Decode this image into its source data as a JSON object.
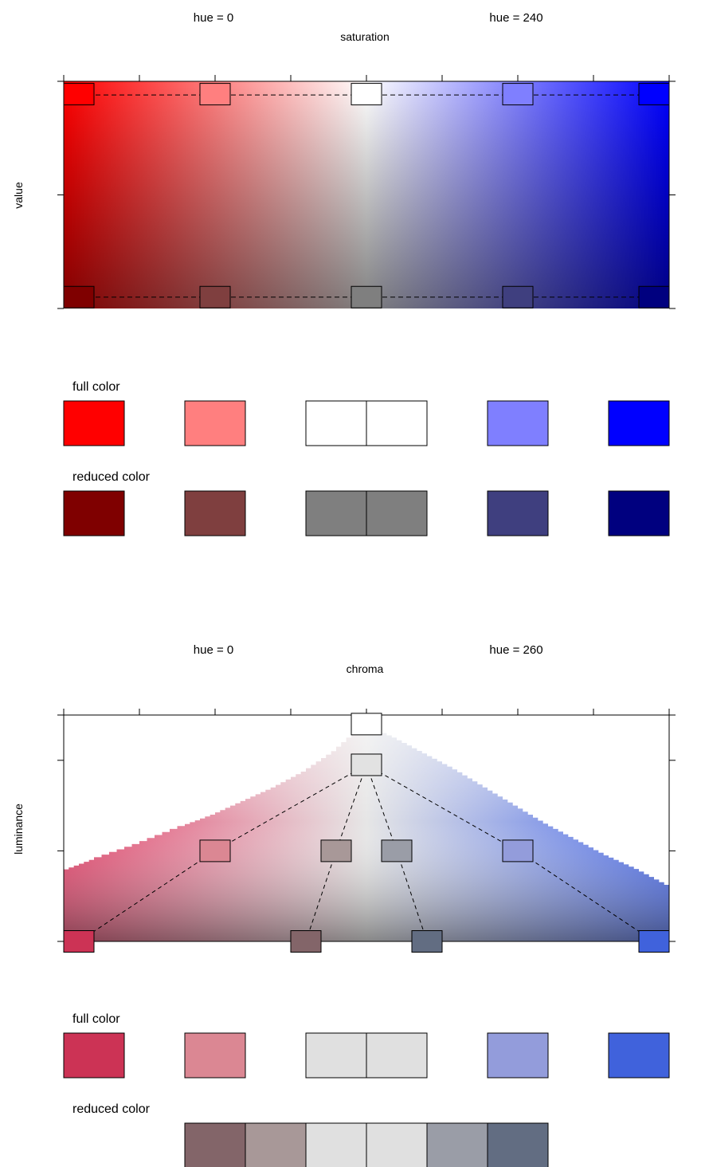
{
  "chart_data": [
    {
      "type": "heatmap",
      "color_space": "HSV",
      "hue_left": 0,
      "hue_right": 240,
      "hue_left_label": "hue = 0",
      "hue_right_label": "hue = 240",
      "xlabel": "saturation",
      "ylabel": "value",
      "x_ticks": [
        "100",
        "75",
        "50",
        "25",
        "0",
        "25",
        "50",
        "75",
        "100"
      ],
      "y_ticks": [
        "100",
        "75",
        "50"
      ],
      "x_range": [
        -100,
        100
      ],
      "y_range": [
        50,
        100
      ],
      "path_upper": [
        {
          "x": -100,
          "y": 97,
          "color": "#FF0000"
        },
        {
          "x": -50,
          "y": 97,
          "color": "#FF7F7F"
        },
        {
          "x": 0,
          "y": 97,
          "color": "#FFFFFF"
        },
        {
          "x": 50,
          "y": 97,
          "color": "#7F7FFF"
        },
        {
          "x": 100,
          "y": 97,
          "color": "#0000FF"
        }
      ],
      "path_lower": [
        {
          "x": -100,
          "y": 52.5,
          "color": "#7F0000"
        },
        {
          "x": -50,
          "y": 52.5,
          "color": "#7F3F3F"
        },
        {
          "x": 0,
          "y": 52.5,
          "color": "#7F7F7F"
        },
        {
          "x": 50,
          "y": 52.5,
          "color": "#3F3F7F"
        },
        {
          "x": 100,
          "y": 52.5,
          "color": "#00007F"
        }
      ],
      "full_color_label": "full color",
      "reduced_color_label": "reduced color",
      "full_swatches": [
        "#FF0000",
        "#FF7F7F",
        "#FFFFFF",
        "#FFFFFF",
        "#7F7FFF",
        "#0000FF"
      ],
      "reduced_swatches": [
        "#7F0000",
        "#7F3F3F",
        "#7F7F7F",
        "#7F7F7F",
        "#3F3F7F",
        "#00007F"
      ]
    },
    {
      "type": "heatmap",
      "color_space": "HCL",
      "hue_left": 0,
      "hue_right": 260,
      "hue_left_label": "hue = 0",
      "hue_right_label": "hue = 260",
      "xlabel": "chroma",
      "ylabel": "luminance",
      "x_ticks": [
        "100",
        "75",
        "50",
        "25",
        "0",
        "25",
        "50",
        "75",
        "100"
      ],
      "y_ticks": [
        "100",
        "90",
        "70",
        "50"
      ],
      "y_tick_values": [
        100,
        90,
        70,
        50
      ],
      "x_range": [
        -100,
        100
      ],
      "y_range": [
        50,
        100
      ],
      "gamut_left": [
        [
          -100,
          65.5
        ],
        [
          -90,
          68
        ],
        [
          -75,
          71.5
        ],
        [
          -60,
          75.5
        ],
        [
          -50,
          78
        ],
        [
          -40,
          81
        ],
        [
          -30,
          84
        ],
        [
          -20,
          87.5
        ],
        [
          -10,
          92
        ],
        [
          0,
          98
        ]
      ],
      "gamut_right": [
        [
          0,
          98
        ],
        [
          10,
          95
        ],
        [
          20,
          91.5
        ],
        [
          30,
          88
        ],
        [
          40,
          84
        ],
        [
          50,
          80
        ],
        [
          60,
          76
        ],
        [
          70,
          72.5
        ],
        [
          80,
          69
        ],
        [
          90,
          66
        ],
        [
          100,
          62.5
        ]
      ],
      "nodes": [
        {
          "x": 0,
          "y": 98,
          "color": "#FFFFFF"
        },
        {
          "x": 0,
          "y": 89,
          "color": "#E2E2E2"
        },
        {
          "x": -50,
          "y": 70,
          "color": "#DB8793"
        },
        {
          "x": -10,
          "y": 70,
          "color": "#A89898"
        },
        {
          "x": 10,
          "y": 70,
          "color": "#9A9DA7"
        },
        {
          "x": 50,
          "y": 70,
          "color": "#939CDB"
        },
        {
          "x": -98,
          "y": 50,
          "color": "#CC3355"
        },
        {
          "x": -20,
          "y": 50,
          "color": "#836569"
        },
        {
          "x": 20,
          "y": 50,
          "color": "#626D82"
        },
        {
          "x": 98,
          "y": 50,
          "color": "#4062DC"
        }
      ],
      "links": [
        [
          1,
          2
        ],
        [
          1,
          3
        ],
        [
          1,
          4
        ],
        [
          1,
          5
        ],
        [
          2,
          6
        ],
        [
          3,
          7
        ],
        [
          4,
          8
        ],
        [
          5,
          9
        ]
      ],
      "full_color_label": "full color",
      "reduced_color_label": "reduced color",
      "full_swatches": [
        "#CC3355",
        "#DB8793",
        "#E0E0E0",
        "#E0E0E0",
        "#939CDB",
        "#4062DC"
      ],
      "reduced_swatches": [
        "#836569",
        "#A89898",
        "#E0E0E0",
        "#E0E0E0",
        "#9A9DA7",
        "#626D82"
      ]
    }
  ]
}
